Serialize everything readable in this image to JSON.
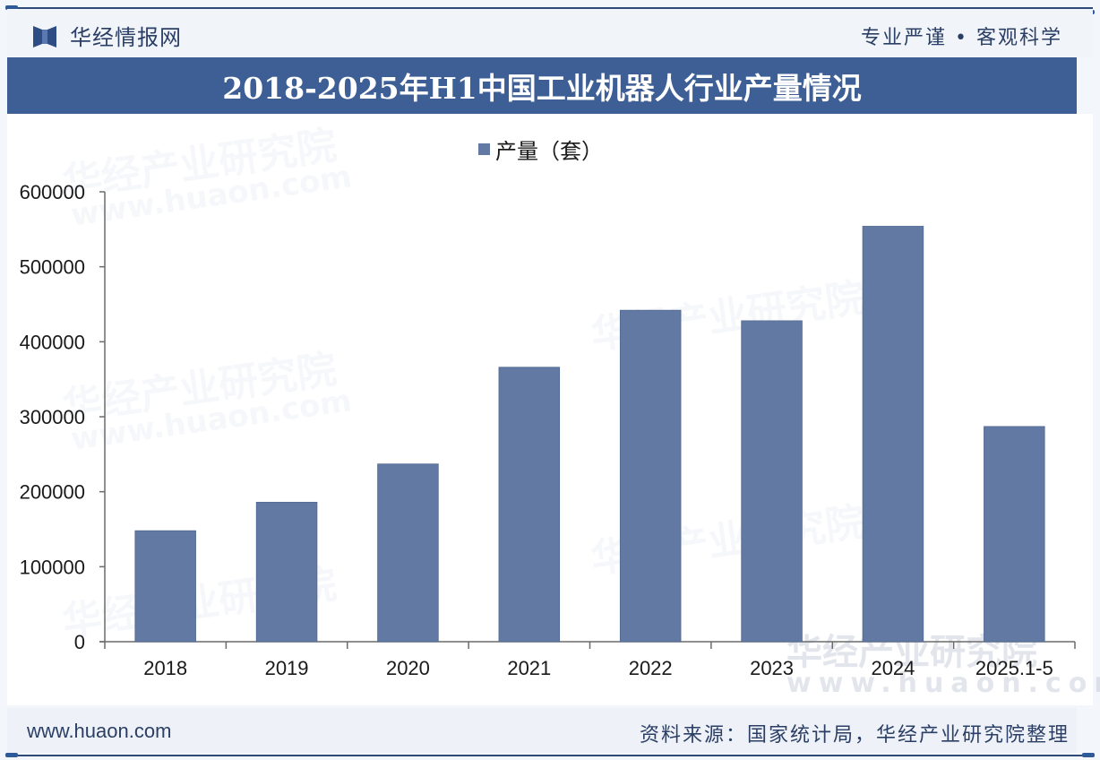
{
  "header": {
    "brand_name": "华经情报网",
    "slogan": "专业严谨 • 客观科学"
  },
  "footer": {
    "url": "www.huaon.com",
    "source": "资料来源：国家统计局，华经产业研究院整理"
  },
  "watermark": {
    "text": "华经产业研究院",
    "url": "www.huaon.com"
  },
  "colors": {
    "bar": "#6279a3",
    "title_bar": "#3e5f96",
    "text_dark": "#2b3f66"
  },
  "chart_data": {
    "type": "bar",
    "title": "2018-2025年H1中国工业机器人行业产量情况",
    "xlabel": "",
    "ylabel": "",
    "legend": {
      "label": "产量（套）",
      "position": "top-center"
    },
    "categories": [
      "2018",
      "2019",
      "2020",
      "2021",
      "2022",
      "2023",
      "2024",
      "2025.1-5"
    ],
    "series": [
      {
        "name": "产量（套）",
        "values": [
          148000,
          186000,
          237000,
          366000,
          442000,
          428000,
          554000,
          287000
        ]
      }
    ],
    "ylim": [
      0,
      600000
    ],
    "yticks": [
      "0",
      "100000",
      "200000",
      "300000",
      "400000",
      "500000",
      "600000"
    ],
    "grid": false
  }
}
